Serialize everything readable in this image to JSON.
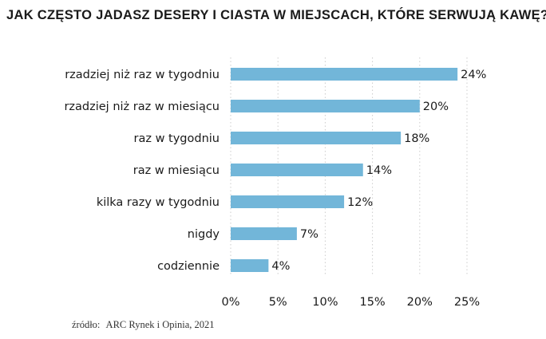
{
  "title": "JAK CZĘSTO JADASZ DESERY I CIASTA W MIEJSCACH, KTÓRE SERWUJĄ KAWĘ?",
  "source_label": "źródło:",
  "source_text": "ARC Rynek i Opinia, 2021",
  "colors": {
    "bar": "#72b6d9",
    "grid": "#cccccc",
    "text": "#1a1a1a"
  },
  "chart_data": {
    "type": "bar",
    "orientation": "horizontal",
    "categories": [
      "rzadziej niż raz w tygodniu",
      "rzadziej niż raz w miesiącu",
      "raz w tygodniu",
      "raz w miesiącu",
      "kilka razy w tygodniu",
      "nigdy",
      "codziennie"
    ],
    "values": [
      24,
      20,
      18,
      14,
      12,
      7,
      4
    ],
    "value_labels": [
      "24%",
      "20%",
      "18%",
      "14%",
      "12%",
      "7%",
      "4%"
    ],
    "x_ticks": [
      0,
      5,
      10,
      15,
      20,
      25
    ],
    "x_tick_labels": [
      "0%",
      "5%",
      "10%",
      "15%",
      "20%",
      "25%"
    ],
    "xlim": [
      0,
      25
    ],
    "grid": true,
    "legend": "none"
  }
}
